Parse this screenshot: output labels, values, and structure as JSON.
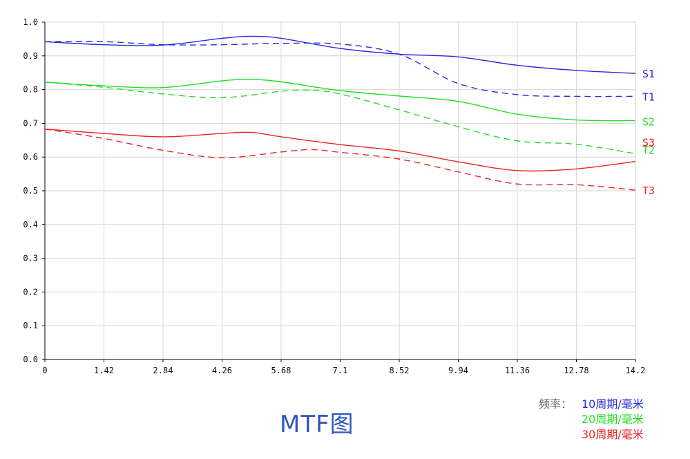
{
  "chart_data": {
    "type": "line",
    "title": "MTF图",
    "xlabel": "",
    "ylabel": "",
    "xlim": [
      0,
      14.2
    ],
    "ylim": [
      0.0,
      1.0
    ],
    "x_ticks": [
      "0",
      "1.42",
      "2.84",
      "4.26",
      "5.68",
      "7.1",
      "8.52",
      "9.94",
      "11.36",
      "12.78",
      "14.2"
    ],
    "y_ticks": [
      "0.0",
      "0.1",
      "0.2",
      "0.3",
      "0.4",
      "0.5",
      "0.6",
      "0.7",
      "0.8",
      "0.9",
      "1.0"
    ],
    "grid": true,
    "series": [
      {
        "name": "S1",
        "color": "#2a2ae0",
        "style": "solid",
        "x": [
          0,
          1.42,
          2.84,
          4.26,
          4.97,
          5.68,
          7.1,
          8.52,
          9.94,
          11.36,
          12.78,
          14.2
        ],
        "y": [
          0.942,
          0.933,
          0.932,
          0.952,
          0.958,
          0.952,
          0.922,
          0.905,
          0.897,
          0.872,
          0.857,
          0.848
        ]
      },
      {
        "name": "T1",
        "color": "#2a2ae0",
        "style": "dashed",
        "x": [
          0,
          1.42,
          2.84,
          4.26,
          5.68,
          7.1,
          8.52,
          9.94,
          11.36,
          12.78,
          14.2
        ],
        "y": [
          0.942,
          0.942,
          0.933,
          0.933,
          0.937,
          0.935,
          0.905,
          0.818,
          0.785,
          0.78,
          0.78
        ]
      },
      {
        "name": "S2",
        "color": "#22dd22",
        "style": "solid",
        "x": [
          0,
          1.42,
          2.84,
          4.26,
          4.97,
          5.68,
          7.1,
          8.52,
          9.94,
          11.36,
          12.78,
          14.2
        ],
        "y": [
          0.822,
          0.811,
          0.806,
          0.826,
          0.83,
          0.823,
          0.797,
          0.781,
          0.765,
          0.727,
          0.71,
          0.708
        ]
      },
      {
        "name": "T2",
        "color": "#22dd22",
        "style": "dashed",
        "x": [
          0,
          1.42,
          2.84,
          4.26,
          5.68,
          6.39,
          7.1,
          8.52,
          9.94,
          11.36,
          12.78,
          14.2
        ],
        "y": [
          0.822,
          0.807,
          0.787,
          0.776,
          0.795,
          0.798,
          0.787,
          0.74,
          0.69,
          0.648,
          0.638,
          0.61
        ]
      },
      {
        "name": "S3",
        "color": "#ee2222",
        "style": "solid",
        "x": [
          0,
          1.42,
          2.84,
          4.26,
          4.97,
          5.68,
          7.1,
          8.52,
          9.94,
          11.36,
          12.78,
          14.2
        ],
        "y": [
          0.683,
          0.67,
          0.66,
          0.67,
          0.673,
          0.66,
          0.637,
          0.618,
          0.586,
          0.56,
          0.565,
          0.587
        ]
      },
      {
        "name": "T3",
        "color": "#ee2222",
        "style": "dashed",
        "x": [
          0,
          1.42,
          2.84,
          4.26,
          5.68,
          6.39,
          7.1,
          8.52,
          9.94,
          11.36,
          12.78,
          14.2
        ],
        "y": [
          0.683,
          0.655,
          0.62,
          0.598,
          0.615,
          0.622,
          0.614,
          0.594,
          0.556,
          0.52,
          0.518,
          0.502
        ]
      }
    ]
  },
  "legend": {
    "prefix": "频率：",
    "items": [
      {
        "label": "10周期/毫米",
        "color": "#2a2ae0"
      },
      {
        "label": "20周期/毫米",
        "color": "#22dd22"
      },
      {
        "label": "30周期/毫米",
        "color": "#ee2222"
      }
    ]
  }
}
